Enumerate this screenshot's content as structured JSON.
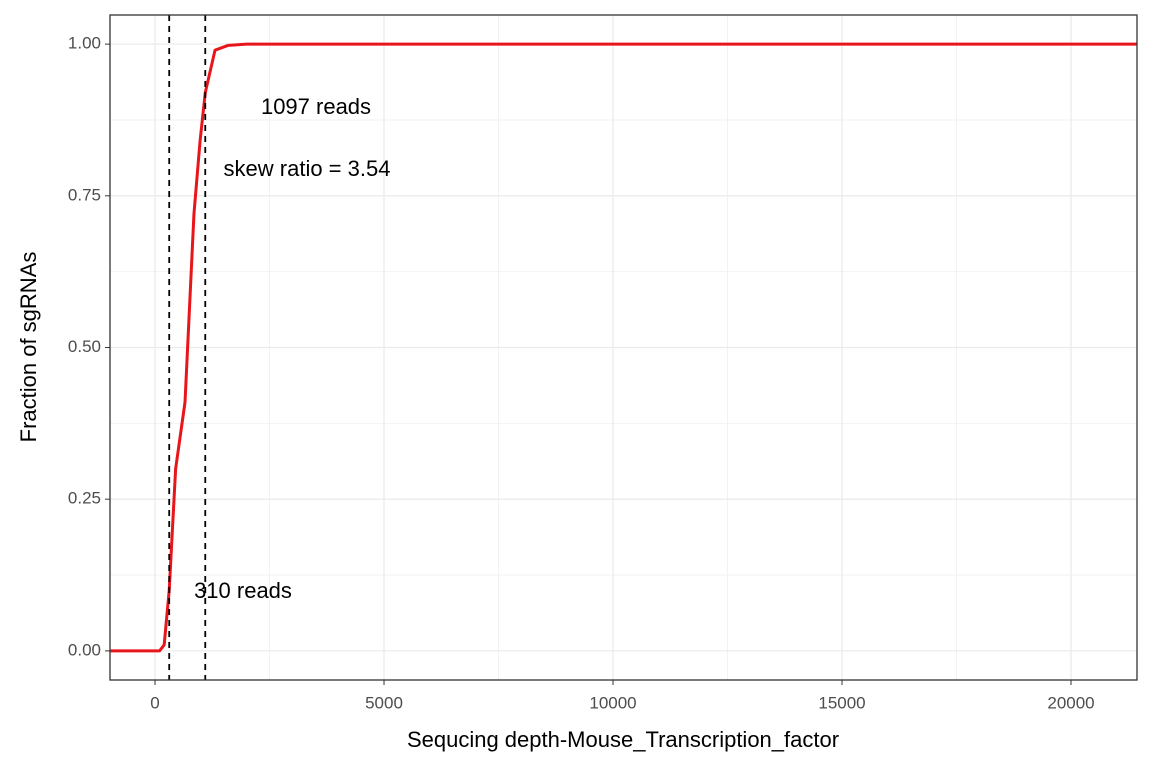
{
  "chart_data": {
    "type": "line",
    "xlabel": "Sequcing depth-Mouse_Transcription_factor",
    "ylabel": "Fraction of sgRNAs",
    "xlim": [
      -983,
      21441
    ],
    "ylim": [
      -0.048,
      1.048
    ],
    "xticks": [
      0,
      5000,
      10000,
      15000,
      20000
    ],
    "yticks": [
      {
        "value": 0,
        "label": "0.00"
      },
      {
        "value": 0.25,
        "label": "0.25"
      },
      {
        "value": 0.5,
        "label": "0.50"
      },
      {
        "value": 0.75,
        "label": "0.75"
      },
      {
        "value": 1,
        "label": "1.00"
      }
    ],
    "grid": true,
    "vlines": [
      310,
      1097
    ],
    "series": [
      {
        "color": "#e8151b",
        "x": [
          -983,
          100,
          200,
          310,
          450,
          655,
          850,
          983,
          1097,
          1310,
          1600,
          2000,
          20500,
          21441
        ],
        "values": [
          0,
          0,
          0.01,
          0.1,
          0.3,
          0.41,
          0.72,
          0.84,
          0.92,
          0.99,
          0.998,
          1,
          1,
          1
        ]
      }
    ],
    "annotations": [
      {
        "text": "1097 reads"
      },
      {
        "text": "skew ratio = 3.54"
      },
      {
        "text": "310 reads"
      }
    ]
  }
}
